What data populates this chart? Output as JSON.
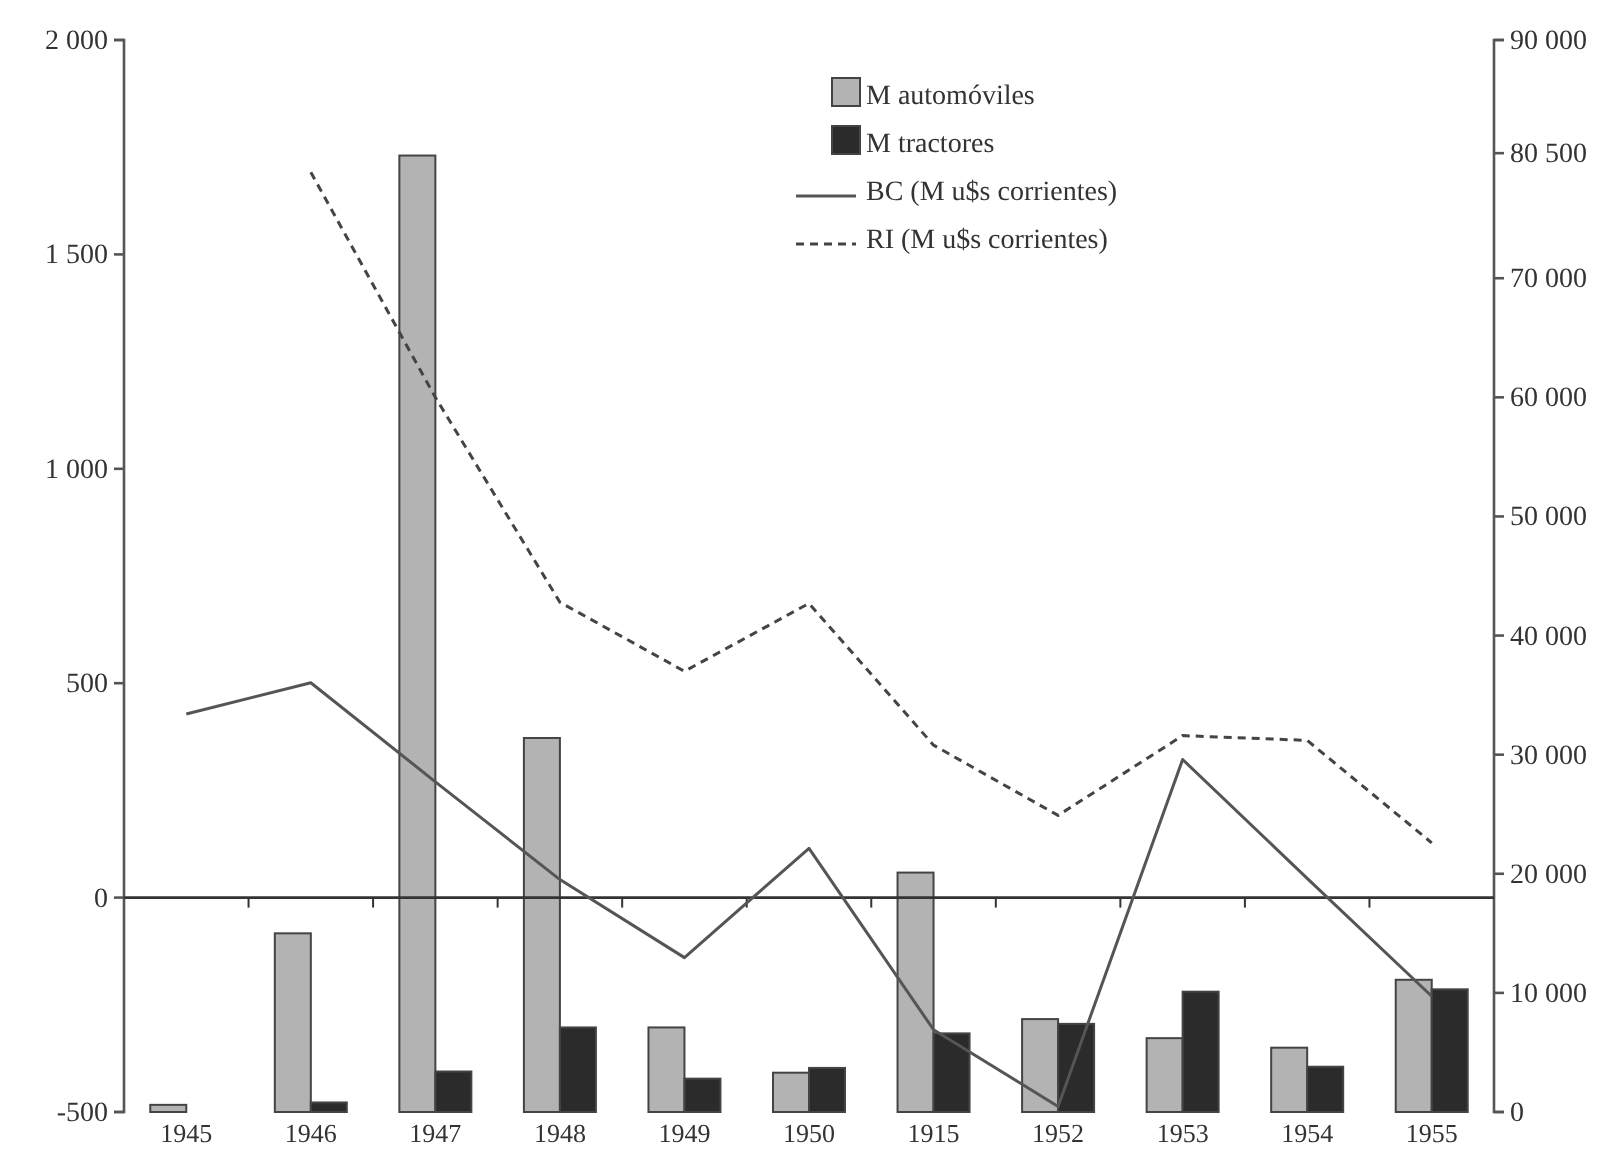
{
  "chart_data": {
    "type": "bar",
    "categories": [
      "1945",
      "1946",
      "1947",
      "1948",
      "1949",
      "1950",
      "1915",
      "1952",
      "1953",
      "1954",
      "1955"
    ],
    "series": [
      {
        "name": "M automóviles",
        "axis": "y2",
        "color": "#b3b3b3",
        "values": [
          600,
          15000,
          80300,
          31400,
          7100,
          3300,
          20100,
          7800,
          6200,
          5400,
          11100
        ]
      },
      {
        "name": "M tractores",
        "axis": "y2",
        "color": "#2b2b2b",
        "values": [
          null,
          800,
          3400,
          7100,
          2800,
          3700,
          6600,
          7400,
          10100,
          3800,
          10300
        ]
      },
      {
        "name": "BC (M u$s corrientes)",
        "type": "line",
        "axis": "y",
        "color": "#555555",
        "line_style": "solid",
        "values": [
          428,
          501,
          270,
          42,
          -140,
          115,
          -308,
          -487,
          322,
          45,
          -230
        ]
      },
      {
        "name": "RI (M u$s corrientes)",
        "type": "line",
        "axis": "y2",
        "color": "#444444",
        "line_style": "dashed",
        "values": [
          null,
          78900,
          60000,
          42800,
          37000,
          42700,
          30800,
          24900,
          31600,
          31200,
          22600
        ]
      }
    ],
    "ylim": [
      -500,
      2000
    ],
    "yticks": [
      {
        "value": -500,
        "label": "-500"
      },
      {
        "value": 0,
        "label": "0"
      },
      {
        "value": 500,
        "label": "500"
      },
      {
        "value": 1000,
        "label": "1 000"
      },
      {
        "value": 1500,
        "label": "1 500"
      },
      {
        "value": 2000,
        "label": "2 000"
      }
    ],
    "y2lim": [
      0,
      90000
    ],
    "y2ticks": [
      {
        "value": 0,
        "label": "0"
      },
      {
        "value": 10000,
        "label": "10 000"
      },
      {
        "value": 20000,
        "label": "20 000"
      },
      {
        "value": 30000,
        "label": "30 000"
      },
      {
        "value": 40000,
        "label": "40 000"
      },
      {
        "value": 50000,
        "label": "50 000"
      },
      {
        "value": 60000,
        "label": "60 000"
      },
      {
        "value": 70000,
        "label": "70 000"
      },
      {
        "value": 80500,
        "label": "80 500"
      },
      {
        "value": 90000,
        "label": "90 000"
      }
    ],
    "ref_lines": [
      {
        "axis": "y",
        "value": 0
      }
    ],
    "grid": false,
    "legend": "top"
  }
}
